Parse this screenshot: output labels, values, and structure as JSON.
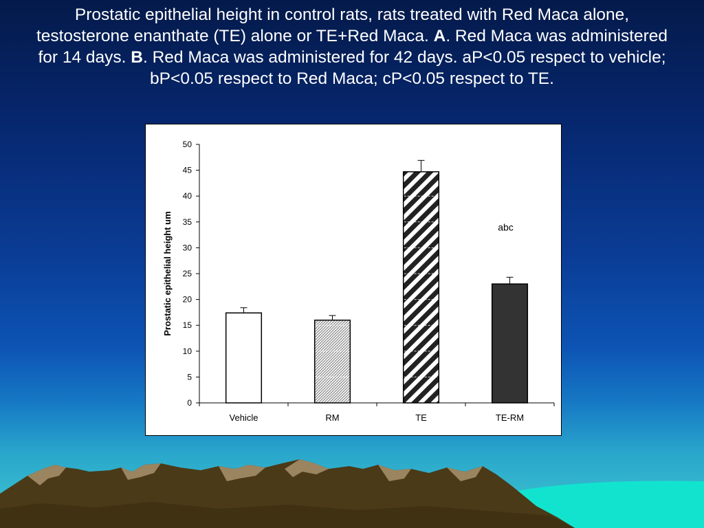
{
  "slide": {
    "title_part1": "Prostatic epithelial height in control rats, rats treated with Red Maca alone, testosterone enanthate (TE) alone or TE+Red Maca. ",
    "title_bold_a": "A",
    "title_part2": ". Red Maca was administered for 14 days. ",
    "title_bold_b": "B",
    "title_part3": ". Red Maca was administered for 42 days. aP<0.05 respect to vehicle; bP<0.05 respect to Red Maca; cP<0.05 respect to TE."
  },
  "chart_data": {
    "type": "bar",
    "title": "",
    "xlabel": "",
    "ylabel": "Prostatic epithelial height um",
    "ylim": [
      0,
      50
    ],
    "yticks": [
      0,
      5,
      10,
      15,
      20,
      25,
      30,
      35,
      40,
      45,
      50
    ],
    "categories": [
      "Vehicle",
      "RM",
      "TE",
      "TE-RM"
    ],
    "values": [
      17.4,
      16.0,
      44.7,
      23.0
    ],
    "errors": [
      1.0,
      0.9,
      2.2,
      1.3
    ],
    "fills": [
      "white",
      "light-crosshatch",
      "bold-diagonal-stripes",
      "dark-solid"
    ],
    "colors": {
      "bar_dark": "#333333",
      "bar_outline": "#000000",
      "stripe": "#222222",
      "hatch": "#777777"
    },
    "annotation": {
      "text": "abc",
      "category_index": 3,
      "y": 34
    },
    "grid": false,
    "legend": "none"
  }
}
